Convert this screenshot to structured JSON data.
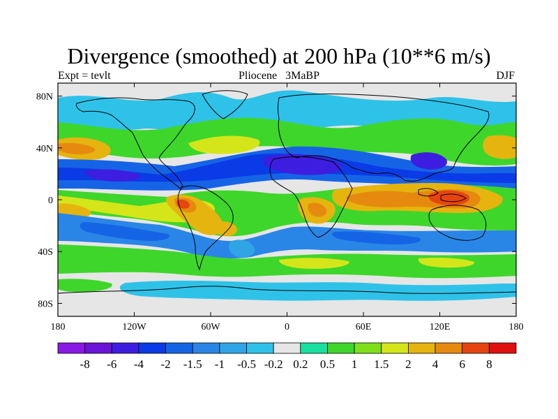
{
  "chart_data": {
    "type": "heatmap",
    "title": "Divergence (smoothed) at 200 hPa (10**6 m/s)",
    "subtitle_left": "Expt = tevlt",
    "subtitle_center": "Pliocene   3MaBP",
    "subtitle_right": "DJF",
    "x_range": [
      -180,
      180
    ],
    "y_range": [
      -90,
      90
    ],
    "x_ticks": [
      {
        "value": -180,
        "label": "180"
      },
      {
        "value": -120,
        "label": "120W"
      },
      {
        "value": -60,
        "label": "60W"
      },
      {
        "value": 0,
        "label": "0"
      },
      {
        "value": 60,
        "label": "60E"
      },
      {
        "value": 120,
        "label": "120E"
      },
      {
        "value": 180,
        "label": "180"
      }
    ],
    "y_ticks": [
      {
        "value": 80,
        "label": "80N"
      },
      {
        "value": 40,
        "label": "40N"
      },
      {
        "value": 0,
        "label": "0"
      },
      {
        "value": -40,
        "label": "40S"
      },
      {
        "value": -80,
        "label": "80S"
      }
    ],
    "colorbar": {
      "boundaries": [
        "-8",
        "-6",
        "-4",
        "-2",
        "-1.5",
        "-1",
        "-0.5",
        "-0.2",
        "0.2",
        "0.5",
        "1",
        "1.5",
        "2",
        "4",
        "6",
        "8"
      ],
      "colors": [
        "#8a19e6",
        "#6a14d8",
        "#3d1ee0",
        "#0a3be6",
        "#1664e6",
        "#2a86e6",
        "#2fa5e6",
        "#2fc2e8",
        "#e6e6e6",
        "#19e0a0",
        "#3ed62a",
        "#7fe01a",
        "#d4e619",
        "#e6b40f",
        "#e68a0f",
        "#e6450f",
        "#e01010"
      ]
    },
    "regions": [
      {
        "name": "equatorial-africa-indian-ocean-divergence",
        "category": "positive",
        "lon_range": [
          0,
          160
        ],
        "lat_range": [
          -20,
          10
        ],
        "peak_value": 6
      },
      {
        "name": "south-america-divergence",
        "category": "positive",
        "lon_range": [
          -80,
          -40
        ],
        "lat_range": [
          -25,
          5
        ],
        "peak_value": 6
      },
      {
        "name": "north-africa-asia-convergence",
        "category": "negative",
        "lon_range": [
          -110,
          140
        ],
        "lat_range": [
          10,
          35
        ],
        "peak_value": -6
      },
      {
        "name": "southern-hemisphere-subtropical-convergence",
        "category": "negative",
        "lon_range": [
          -180,
          180
        ],
        "lat_range": [
          -45,
          -25
        ],
        "peak_value": -2
      },
      {
        "name": "northern-midlatitude-divergence",
        "category": "positive",
        "lon_range": [
          -180,
          180
        ],
        "lat_range": [
          30,
          55
        ],
        "peak_value": 2
      },
      {
        "name": "southern-midlatitude-divergence",
        "category": "positive",
        "lon_range": [
          -180,
          180
        ],
        "lat_range": [
          -65,
          -45
        ],
        "peak_value": 1
      }
    ]
  }
}
